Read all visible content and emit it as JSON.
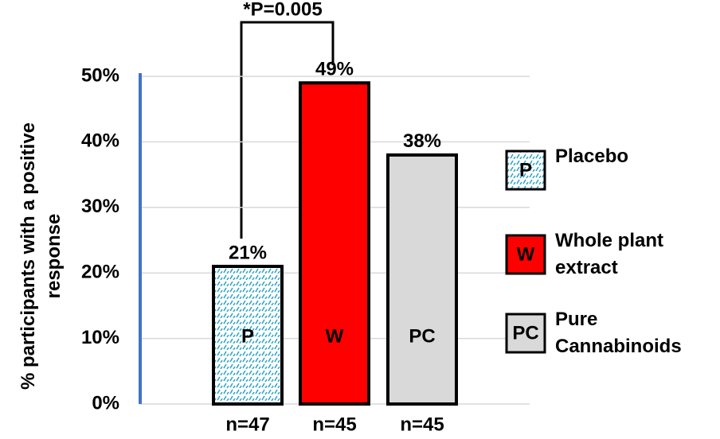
{
  "chart_data": {
    "type": "bar",
    "y_label": "% participants with a positive response",
    "annotation": "*P=0.005",
    "categories": [
      "n=47",
      "n=45",
      "n=45"
    ],
    "values": [
      21,
      49,
      38
    ],
    "value_labels": [
      "21%",
      "49%",
      "38%"
    ],
    "bar_letters": [
      "P",
      "W",
      "PC"
    ],
    "legend": [
      "Placebo",
      "Whole plant extract",
      "Pure Cannabinoids"
    ],
    "colors": [
      "#2aa3c6",
      "#ff0000",
      "#d9d9d9"
    ],
    "patterned": [
      true,
      false,
      false
    ],
    "ylim": [
      0,
      50
    ],
    "yticks": [
      {
        "value": 0,
        "label": "0%"
      },
      {
        "value": 10,
        "label": "10%"
      },
      {
        "value": 20,
        "label": "20%"
      },
      {
        "value": 30,
        "label": "30%"
      },
      {
        "value": 40,
        "label": "40%"
      },
      {
        "value": 50,
        "label": "50%"
      }
    ],
    "grid": true
  }
}
